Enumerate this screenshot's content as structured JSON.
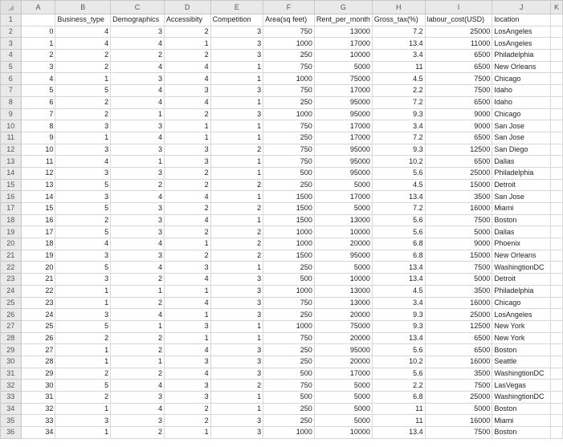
{
  "corner_icon": "select-all-icon",
  "column_letters": [
    "A",
    "B",
    "C",
    "D",
    "E",
    "F",
    "G",
    "H",
    "I",
    "J",
    "K"
  ],
  "headers": [
    "",
    "Business_type",
    "Demographics",
    "Accessibity",
    "Competition",
    "Area(sq feet)",
    "Rent_per_month",
    "Gross_tax(%)",
    "labour_cost(USD)",
    "location",
    ""
  ],
  "rows": [
    [
      "0",
      "4",
      "3",
      "2",
      "3",
      "750",
      "13000",
      "7.2",
      "25000",
      "LosAngeles"
    ],
    [
      "1",
      "4",
      "4",
      "1",
      "3",
      "1000",
      "17000",
      "13.4",
      "11000",
      "LosAngeles"
    ],
    [
      "2",
      "2",
      "2",
      "2",
      "3",
      "250",
      "10000",
      "3.4",
      "6500",
      "Philadelphia"
    ],
    [
      "3",
      "2",
      "4",
      "4",
      "1",
      "750",
      "5000",
      "11",
      "6500",
      "New Orleans"
    ],
    [
      "4",
      "1",
      "3",
      "4",
      "1",
      "1000",
      "75000",
      "4.5",
      "7500",
      "Chicago"
    ],
    [
      "5",
      "5",
      "4",
      "3",
      "3",
      "750",
      "17000",
      "2.2",
      "7500",
      "Idaho"
    ],
    [
      "6",
      "2",
      "4",
      "4",
      "1",
      "250",
      "95000",
      "7.2",
      "6500",
      "Idaho"
    ],
    [
      "7",
      "2",
      "1",
      "2",
      "3",
      "1000",
      "95000",
      "9.3",
      "9000",
      "Chicago"
    ],
    [
      "8",
      "3",
      "3",
      "1",
      "1",
      "750",
      "17000",
      "3.4",
      "9000",
      "San Jose"
    ],
    [
      "9",
      "1",
      "4",
      "1",
      "1",
      "250",
      "17000",
      "7.2",
      "6500",
      "San Jose"
    ],
    [
      "10",
      "3",
      "3",
      "3",
      "2",
      "750",
      "95000",
      "9.3",
      "12500",
      "San Diego"
    ],
    [
      "11",
      "4",
      "1",
      "3",
      "1",
      "750",
      "95000",
      "10.2",
      "6500",
      "Dallas"
    ],
    [
      "12",
      "3",
      "3",
      "2",
      "1",
      "500",
      "95000",
      "5.6",
      "25000",
      "Philadelphia"
    ],
    [
      "13",
      "5",
      "2",
      "2",
      "2",
      "250",
      "5000",
      "4.5",
      "15000",
      "Detroit"
    ],
    [
      "14",
      "3",
      "4",
      "4",
      "1",
      "1500",
      "17000",
      "13.4",
      "3500",
      "San Jose"
    ],
    [
      "15",
      "5",
      "3",
      "2",
      "2",
      "1500",
      "5000",
      "7.2",
      "16000",
      "Miami"
    ],
    [
      "16",
      "2",
      "3",
      "4",
      "1",
      "1500",
      "13000",
      "5.6",
      "7500",
      "Boston"
    ],
    [
      "17",
      "5",
      "3",
      "2",
      "2",
      "1000",
      "10000",
      "5.6",
      "5000",
      "Dallas"
    ],
    [
      "18",
      "4",
      "4",
      "1",
      "2",
      "1000",
      "20000",
      "6.8",
      "9000",
      "Phoenix"
    ],
    [
      "19",
      "3",
      "3",
      "2",
      "2",
      "1500",
      "95000",
      "6.8",
      "15000",
      "New Orleans"
    ],
    [
      "20",
      "5",
      "4",
      "3",
      "1",
      "250",
      "5000",
      "13.4",
      "7500",
      "WashingtionDC"
    ],
    [
      "21",
      "3",
      "2",
      "4",
      "3",
      "500",
      "10000",
      "13.4",
      "5000",
      "Detroit"
    ],
    [
      "22",
      "1",
      "1",
      "1",
      "3",
      "1000",
      "13000",
      "4.5",
      "3500",
      "Philadelphia"
    ],
    [
      "23",
      "1",
      "2",
      "4",
      "3",
      "750",
      "13000",
      "3.4",
      "16000",
      "Chicago"
    ],
    [
      "24",
      "3",
      "4",
      "1",
      "3",
      "250",
      "20000",
      "9.3",
      "25000",
      "LosAngeles"
    ],
    [
      "25",
      "5",
      "1",
      "3",
      "1",
      "1000",
      "75000",
      "9.3",
      "12500",
      "New York"
    ],
    [
      "26",
      "2",
      "2",
      "1",
      "1",
      "750",
      "20000",
      "13.4",
      "6500",
      "New York"
    ],
    [
      "27",
      "1",
      "2",
      "4",
      "3",
      "250",
      "95000",
      "5.6",
      "6500",
      "Boston"
    ],
    [
      "28",
      "1",
      "1",
      "3",
      "3",
      "250",
      "20000",
      "10.2",
      "16000",
      "Seattle"
    ],
    [
      "29",
      "2",
      "2",
      "4",
      "3",
      "500",
      "17000",
      "5.6",
      "3500",
      "WashingtionDC"
    ],
    [
      "30",
      "5",
      "4",
      "3",
      "2",
      "750",
      "5000",
      "2.2",
      "7500",
      "LasVegas"
    ],
    [
      "31",
      "2",
      "3",
      "3",
      "1",
      "500",
      "5000",
      "6.8",
      "25000",
      "WashingtionDC"
    ],
    [
      "32",
      "1",
      "4",
      "2",
      "1",
      "250",
      "5000",
      "11",
      "5000",
      "Boston"
    ],
    [
      "33",
      "3",
      "3",
      "2",
      "3",
      "250",
      "5000",
      "11",
      "16000",
      "Miami"
    ],
    [
      "34",
      "1",
      "2",
      "1",
      "3",
      "1000",
      "10000",
      "13.4",
      "7500",
      "Boston"
    ]
  ]
}
